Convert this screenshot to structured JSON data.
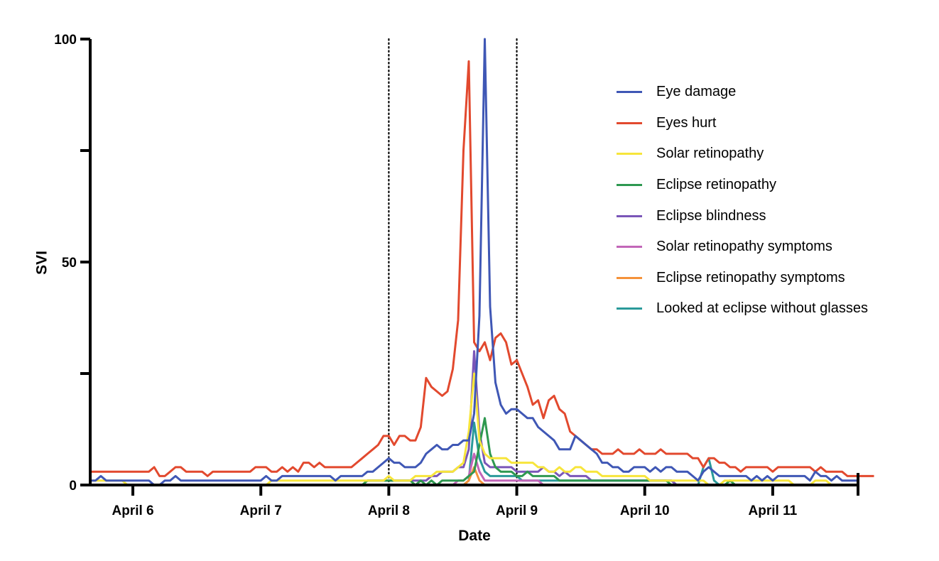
{
  "chart_data": {
    "type": "line",
    "title": "",
    "xlabel": "Date",
    "ylabel": "SVI",
    "ylim": [
      0,
      100
    ],
    "yticks": [
      0,
      25,
      50,
      75,
      100
    ],
    "ytick_labels": [
      "0",
      "",
      "50",
      "",
      "100"
    ],
    "x_unit": "hours since axis start (Apr 5, ~16:00), hourly samples",
    "x_tick_labels": [
      "April 6",
      "April 7",
      "April 8",
      "April 9",
      "April 10",
      "April 11"
    ],
    "x_tick_hours": [
      8,
      32,
      56,
      80,
      104,
      128
    ],
    "x_range_hours": [
      0,
      144
    ],
    "reference_lines_hours": [
      56,
      80
    ],
    "reference_line_style": "dotted",
    "grid": false,
    "legend_position": "upper right",
    "series": [
      {
        "name": "Eye damage",
        "color": "#3f57b5",
        "values": [
          1,
          1,
          2,
          1,
          1,
          1,
          1,
          1,
          1,
          1,
          1,
          1,
          0,
          0,
          1,
          1,
          2,
          1,
          1,
          1,
          1,
          1,
          1,
          1,
          1,
          1,
          1,
          1,
          1,
          1,
          1,
          1,
          1,
          2,
          1,
          1,
          2,
          2,
          2,
          2,
          2,
          2,
          2,
          2,
          2,
          2,
          1,
          2,
          2,
          2,
          2,
          2,
          3,
          3,
          4,
          5,
          6,
          5,
          5,
          4,
          4,
          4,
          5,
          7,
          8,
          9,
          8,
          8,
          9,
          9,
          10,
          10,
          16,
          38,
          100,
          40,
          23,
          18,
          16,
          17,
          17,
          16,
          15,
          15,
          13,
          12,
          11,
          10,
          8,
          8,
          8,
          11,
          10,
          9,
          8,
          7,
          5,
          5,
          4,
          4,
          3,
          3,
          4,
          4,
          4,
          3,
          4,
          3,
          4,
          4,
          3,
          3,
          3,
          2,
          1,
          3,
          4,
          3,
          2,
          2,
          2,
          2,
          2,
          2,
          1,
          2,
          1,
          2,
          1,
          2,
          2,
          2,
          2,
          2,
          2,
          1,
          3,
          2,
          2,
          1,
          2,
          1,
          1,
          1,
          1
        ]
      },
      {
        "name": "Eyes hurt",
        "color": "#e2492e",
        "values": [
          3,
          3,
          3,
          3,
          3,
          3,
          3,
          3,
          3,
          3,
          3,
          3,
          4,
          2,
          2,
          3,
          4,
          4,
          3,
          3,
          3,
          3,
          2,
          3,
          3,
          3,
          3,
          3,
          3,
          3,
          3,
          4,
          4,
          4,
          3,
          3,
          4,
          3,
          4,
          3,
          5,
          5,
          4,
          5,
          4,
          4,
          4,
          4,
          4,
          4,
          5,
          6,
          7,
          8,
          9,
          11,
          11,
          9,
          11,
          11,
          10,
          10,
          13,
          24,
          22,
          21,
          20,
          21,
          26,
          37,
          75,
          95,
          32,
          30,
          32,
          28,
          33,
          34,
          32,
          27,
          28,
          25,
          22,
          18,
          19,
          15,
          19,
          20,
          17,
          16,
          12,
          11,
          10,
          9,
          8,
          8,
          7,
          7,
          7,
          8,
          7,
          7,
          7,
          8,
          7,
          7,
          7,
          8,
          7,
          7,
          7,
          7,
          7,
          6,
          6,
          4,
          6,
          6,
          5,
          5,
          4,
          4,
          3,
          4,
          4,
          4,
          4,
          4,
          3,
          4,
          4,
          4,
          4,
          4,
          4,
          4,
          3,
          4,
          3,
          3,
          3,
          3,
          2,
          2,
          2,
          2,
          2,
          2
        ]
      },
      {
        "name": "Solar retinopathy",
        "color": "#f7e53b",
        "values": [
          1,
          1,
          1,
          1,
          1,
          1,
          1,
          0,
          0,
          0,
          0,
          0,
          0,
          0,
          0,
          0,
          0,
          0,
          0,
          0,
          0,
          0,
          0,
          0,
          0,
          0,
          0,
          0,
          0,
          0,
          0,
          0,
          0,
          0,
          1,
          1,
          1,
          1,
          1,
          1,
          1,
          1,
          1,
          1,
          1,
          1,
          1,
          1,
          1,
          1,
          1,
          1,
          1,
          1,
          1,
          1,
          2,
          1,
          1,
          1,
          1,
          2,
          2,
          2,
          2,
          3,
          3,
          3,
          3,
          4,
          5,
          12,
          25,
          10,
          7,
          6,
          6,
          6,
          6,
          5,
          5,
          5,
          5,
          5,
          4,
          4,
          3,
          3,
          4,
          3,
          3,
          4,
          4,
          3,
          3,
          3,
          2,
          2,
          2,
          2,
          2,
          2,
          2,
          2,
          2,
          1,
          1,
          1,
          1,
          1,
          1,
          1,
          1,
          1,
          1,
          1,
          0,
          0,
          0,
          1,
          1,
          1,
          1,
          1,
          1,
          1,
          1,
          1,
          1,
          1,
          1,
          1,
          0,
          0,
          0,
          0,
          1,
          1,
          1,
          0,
          0,
          0,
          0,
          0,
          0
        ]
      },
      {
        "name": "Eclipse retinopathy",
        "color": "#2e9850",
        "values": [
          0,
          0,
          0,
          0,
          0,
          0,
          0,
          0,
          0,
          0,
          0,
          0,
          0,
          0,
          0,
          0,
          0,
          0,
          0,
          0,
          0,
          0,
          0,
          0,
          0,
          0,
          0,
          0,
          0,
          0,
          0,
          0,
          0,
          0,
          0,
          0,
          0,
          0,
          0,
          0,
          0,
          0,
          0,
          0,
          0,
          0,
          0,
          0,
          0,
          0,
          0,
          0,
          1,
          1,
          1,
          1,
          1,
          1,
          1,
          1,
          1,
          0,
          1,
          0,
          1,
          0,
          1,
          1,
          1,
          1,
          1,
          2,
          3,
          9,
          15,
          7,
          4,
          3,
          3,
          3,
          2,
          2,
          3,
          2,
          2,
          2,
          2,
          2,
          1,
          1,
          1,
          1,
          1,
          1,
          1,
          1,
          1,
          1,
          1,
          1,
          1,
          1,
          1,
          1,
          1,
          1,
          1,
          1,
          1,
          0,
          0,
          0,
          0,
          0,
          0,
          0,
          0,
          0,
          0,
          0,
          1,
          0,
          0,
          0,
          0,
          0,
          0,
          0,
          0,
          0,
          0,
          0,
          0,
          0,
          0,
          0,
          0,
          0,
          0,
          0,
          0,
          0,
          0,
          0,
          0
        ]
      },
      {
        "name": "Eclipse blindness",
        "color": "#7a56b8",
        "values": [
          0,
          0,
          0,
          0,
          0,
          0,
          0,
          0,
          0,
          0,
          0,
          0,
          0,
          0,
          0,
          0,
          0,
          0,
          0,
          0,
          0,
          0,
          0,
          0,
          0,
          0,
          0,
          0,
          0,
          0,
          0,
          0,
          0,
          0,
          0,
          0,
          0,
          0,
          0,
          0,
          0,
          0,
          0,
          0,
          0,
          0,
          0,
          0,
          0,
          0,
          0,
          0,
          1,
          1,
          1,
          1,
          1,
          1,
          1,
          1,
          1,
          1,
          1,
          1,
          2,
          2,
          3,
          3,
          3,
          4,
          4,
          8,
          30,
          12,
          5,
          4,
          4,
          4,
          4,
          4,
          3,
          3,
          3,
          3,
          3,
          4,
          3,
          3,
          2,
          3,
          2,
          2,
          2,
          2,
          1,
          1,
          1,
          1,
          1,
          1,
          1,
          1,
          1,
          1,
          1,
          1,
          1,
          1,
          1,
          1,
          0,
          0,
          0,
          0,
          0,
          0,
          0,
          0,
          0,
          0,
          0,
          0,
          0,
          0,
          0,
          0,
          0,
          0,
          0,
          0,
          0,
          0,
          0,
          0,
          0,
          0,
          0,
          0,
          0,
          0,
          0,
          0,
          0,
          0,
          0
        ]
      },
      {
        "name": "Solar retinopathy symptoms",
        "color": "#c266b8",
        "values": [
          0,
          0,
          0,
          0,
          0,
          0,
          0,
          0,
          0,
          0,
          0,
          0,
          0,
          0,
          0,
          0,
          0,
          0,
          0,
          0,
          0,
          0,
          0,
          0,
          0,
          0,
          0,
          0,
          0,
          0,
          0,
          0,
          0,
          0,
          0,
          0,
          0,
          0,
          0,
          0,
          0,
          0,
          0,
          0,
          0,
          0,
          0,
          0,
          0,
          0,
          0,
          0,
          0,
          0,
          0,
          0,
          0,
          0,
          0,
          0,
          0,
          0,
          0,
          0,
          0,
          0,
          0,
          0,
          0,
          1,
          1,
          2,
          7,
          3,
          1,
          1,
          1,
          1,
          1,
          1,
          1,
          1,
          1,
          1,
          1,
          0,
          0,
          0,
          0,
          0,
          0,
          0,
          0,
          0,
          0,
          0,
          0,
          0,
          0,
          0,
          0,
          0,
          0,
          0,
          0,
          0,
          0,
          0,
          0,
          0,
          0,
          0,
          0,
          0,
          0,
          0,
          0,
          0,
          0,
          0,
          0,
          0,
          0,
          0,
          0,
          0,
          0,
          0,
          0,
          0,
          0,
          0,
          0,
          0,
          0,
          0,
          0,
          0,
          0,
          0,
          0,
          0,
          0,
          0,
          0
        ]
      },
      {
        "name": "Eclipse retinopathy symptoms",
        "color": "#f5923a",
        "values": [
          0,
          0,
          0,
          0,
          0,
          0,
          0,
          0,
          0,
          0,
          0,
          0,
          0,
          0,
          0,
          0,
          0,
          0,
          0,
          0,
          0,
          0,
          0,
          0,
          0,
          0,
          0,
          0,
          0,
          0,
          0,
          0,
          0,
          0,
          0,
          0,
          0,
          0,
          0,
          0,
          0,
          0,
          0,
          0,
          0,
          0,
          0,
          0,
          0,
          0,
          0,
          0,
          0,
          0,
          0,
          0,
          0,
          0,
          0,
          0,
          0,
          0,
          0,
          0,
          0,
          0,
          0,
          0,
          0,
          0,
          0,
          1,
          4,
          1,
          0,
          0,
          0,
          0,
          0,
          0,
          0,
          0,
          0,
          0,
          0,
          0,
          0,
          0,
          0,
          0,
          0,
          0,
          0,
          0,
          0,
          0,
          0,
          0,
          0,
          0,
          0,
          0,
          0,
          0,
          0,
          0,
          0,
          0,
          0,
          0,
          0,
          0,
          0,
          0,
          0,
          0,
          0,
          0,
          0,
          0,
          0,
          0,
          0,
          0,
          0,
          0,
          0,
          0,
          0,
          0,
          0,
          0,
          0,
          0,
          0,
          0,
          0,
          0,
          0,
          0,
          0,
          0,
          0,
          0,
          0
        ]
      },
      {
        "name": "Looked at eclipse without glasses",
        "color": "#2a9a9a",
        "values": [
          0,
          0,
          0,
          0,
          0,
          0,
          0,
          0,
          0,
          0,
          0,
          0,
          0,
          0,
          0,
          0,
          0,
          0,
          0,
          0,
          0,
          0,
          0,
          0,
          0,
          0,
          0,
          0,
          0,
          0,
          0,
          0,
          0,
          0,
          0,
          0,
          0,
          0,
          0,
          0,
          0,
          0,
          0,
          0,
          0,
          0,
          0,
          0,
          0,
          0,
          0,
          0,
          0,
          0,
          0,
          0,
          0,
          0,
          0,
          0,
          0,
          0,
          0,
          0,
          0,
          0,
          0,
          0,
          0,
          0,
          0,
          1,
          14,
          6,
          3,
          2,
          2,
          2,
          2,
          2,
          2,
          1,
          1,
          1,
          1,
          1,
          1,
          1,
          1,
          1,
          1,
          1,
          1,
          1,
          1,
          1,
          1,
          1,
          1,
          1,
          1,
          1,
          1,
          1,
          1,
          1,
          1,
          1,
          1,
          1,
          0,
          0,
          0,
          0,
          0,
          4,
          6,
          1,
          0,
          0,
          0,
          0,
          0,
          0,
          0,
          0,
          0,
          0,
          0,
          0,
          0,
          0,
          0,
          0,
          0,
          0,
          0,
          0,
          0,
          0,
          0,
          0,
          0,
          0,
          0
        ]
      }
    ]
  },
  "axes": {
    "y_title": "SVI",
    "x_title": "Date"
  }
}
